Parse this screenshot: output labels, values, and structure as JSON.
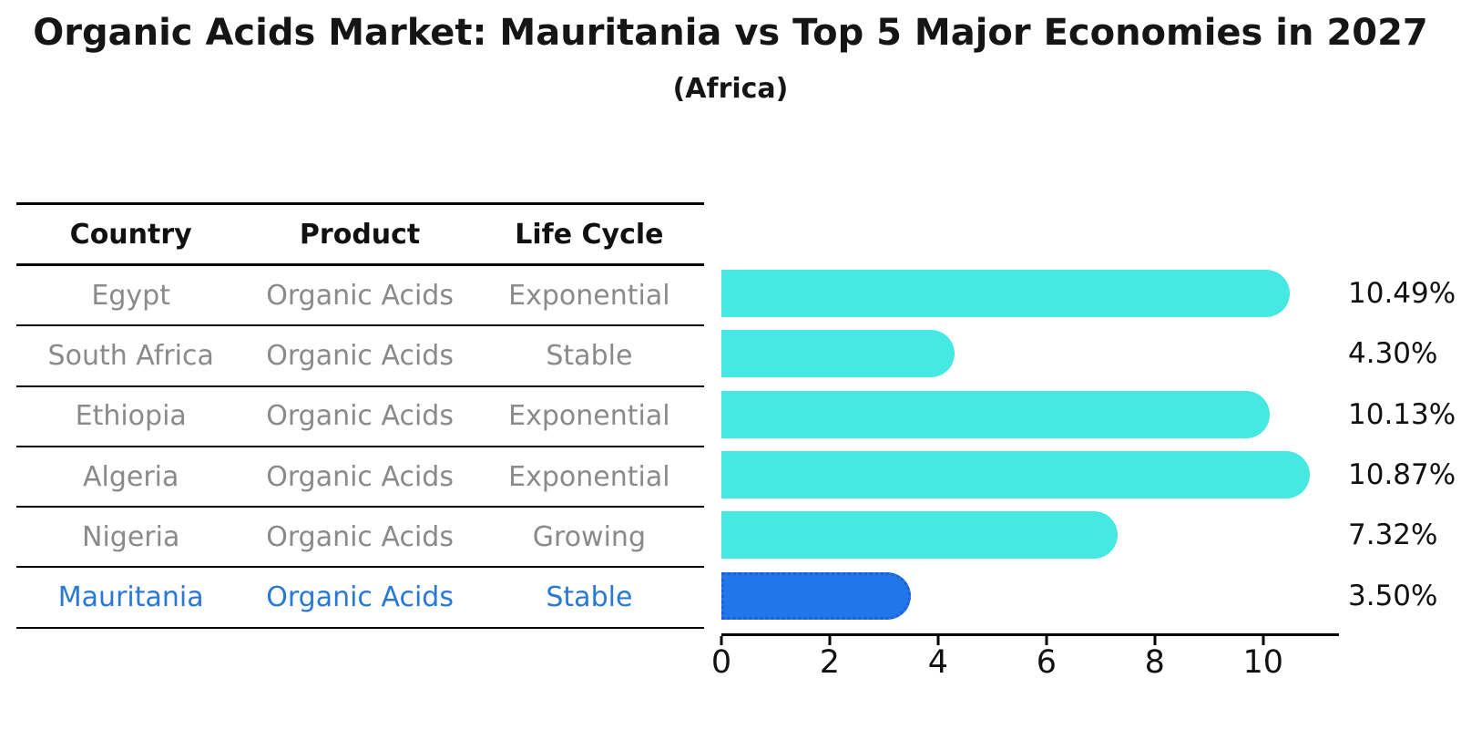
{
  "title": "Organic Acids Market: Mauritania vs Top 5 Major Economies in 2027",
  "subtitle": "(Africa)",
  "table": {
    "headers": [
      "Country",
      "Product",
      "Life Cycle"
    ]
  },
  "chart_data": {
    "type": "bar",
    "orientation": "horizontal",
    "title": "Organic Acids Market: Mauritania vs Top 5 Major Economies in 2027",
    "subtitle": "(Africa)",
    "categories": [
      "Egypt",
      "South Africa",
      "Ethiopia",
      "Algeria",
      "Nigeria",
      "Mauritania"
    ],
    "values": [
      10.49,
      4.3,
      10.13,
      10.87,
      7.32,
      3.5
    ],
    "rows": [
      {
        "country": "Egypt",
        "product": "Organic Acids",
        "life_cycle": "Exponential",
        "value": 10.49,
        "label": "10.49%",
        "highlight": false
      },
      {
        "country": "South Africa",
        "product": "Organic Acids",
        "life_cycle": "Stable",
        "value": 4.3,
        "label": "4.30%",
        "highlight": false
      },
      {
        "country": "Ethiopia",
        "product": "Organic Acids",
        "life_cycle": "Exponential",
        "value": 10.13,
        "label": "10.13%",
        "highlight": false
      },
      {
        "country": "Algeria",
        "product": "Organic Acids",
        "life_cycle": "Exponential",
        "value": 10.87,
        "label": "10.87%",
        "highlight": false
      },
      {
        "country": "Nigeria",
        "product": "Organic Acids",
        "life_cycle": "Growing",
        "value": 7.32,
        "label": "7.32%",
        "highlight": false
      },
      {
        "country": "Mauritania",
        "product": "Organic Acids",
        "life_cycle": "Stable",
        "value": 3.5,
        "label": "3.50%",
        "highlight": true
      }
    ],
    "xlabel": "",
    "ylabel": "",
    "xticks": [
      0,
      2,
      4,
      6,
      8,
      10
    ],
    "xlim": [
      0,
      11.4
    ],
    "grid": false,
    "legend": false,
    "colors": {
      "bar": "#45e8e2",
      "highlight_bar": "#2277e8",
      "highlight_border": "#1c5ed6",
      "highlight_text": "#2878d8",
      "row_text": "#8a8a8a",
      "header_text": "#111111"
    }
  }
}
